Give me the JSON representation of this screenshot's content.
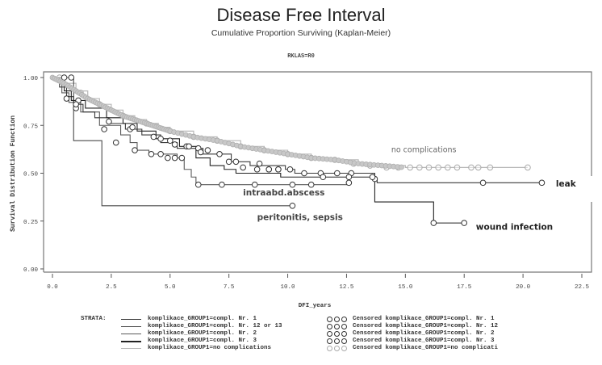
{
  "chart_data": {
    "type": "line",
    "subtype": "kaplan-meier-step",
    "title": "Disease Free Interval",
    "subtitle": "Cumulative Proportion Surviving (Kaplan-Meier)",
    "strata_filter": "RKLAS=R0",
    "xlabel": "DFI_years",
    "ylabel": "Survival Distribution Function",
    "xlim": [
      0,
      22.5
    ],
    "ylim": [
      0,
      1
    ],
    "xticks": [
      "0.0",
      "2.5",
      "5.0",
      "7.5",
      "10.0",
      "12.5",
      "15.0",
      "17.5",
      "20.0",
      "22.5"
    ],
    "xtick_values": [
      0,
      2.5,
      5,
      7.5,
      10,
      12.5,
      15,
      17.5,
      20,
      22.5
    ],
    "yticks": [
      "0.00",
      "0.25",
      "0.50",
      "0.75",
      "1.00"
    ],
    "ytick_values": [
      0,
      0.25,
      0.5,
      0.75,
      1
    ],
    "grid": false,
    "legend_position": "bottom",
    "legend_title": "STRATA:",
    "series": [
      {
        "name": "komplikace_GROUP1=compl. Nr. 1",
        "censored_name": "Censored komplikace_GROUP1=compl. Nr. 1",
        "annotation": "leak",
        "color": "#3a3a3a",
        "steps": [
          [
            0,
            1.0
          ],
          [
            0.3,
            0.95
          ],
          [
            0.6,
            0.9
          ],
          [
            0.9,
            0.86
          ],
          [
            1.3,
            0.82
          ],
          [
            1.8,
            0.79
          ],
          [
            2.4,
            0.76
          ],
          [
            3.1,
            0.73
          ],
          [
            3.8,
            0.7
          ],
          [
            4.6,
            0.66
          ],
          [
            5.3,
            0.63
          ],
          [
            6.4,
            0.6
          ],
          [
            7.6,
            0.56
          ],
          [
            8.4,
            0.54
          ],
          [
            9.9,
            0.52
          ],
          [
            10.3,
            0.5
          ],
          [
            13.7,
            0.47
          ],
          [
            13.8,
            0.45
          ],
          [
            20.8,
            0.45
          ]
        ],
        "censored": [
          [
            0.5,
            1.0
          ],
          [
            1.1,
            0.88
          ],
          [
            3.3,
            0.73
          ],
          [
            4.3,
            0.69
          ],
          [
            5.2,
            0.65
          ],
          [
            5.7,
            0.64
          ],
          [
            6.2,
            0.63
          ],
          [
            6.6,
            0.62
          ],
          [
            7.1,
            0.6
          ],
          [
            7.8,
            0.56
          ],
          [
            8.8,
            0.55
          ],
          [
            9.2,
            0.52
          ],
          [
            9.6,
            0.52
          ],
          [
            10.1,
            0.52
          ],
          [
            10.7,
            0.5
          ],
          [
            11.4,
            0.5
          ],
          [
            12.1,
            0.5
          ],
          [
            12.7,
            0.5
          ],
          [
            13.7,
            0.47
          ],
          [
            18.3,
            0.45
          ],
          [
            20.8,
            0.45
          ]
        ]
      },
      {
        "name": "komplikace_GROUP1=compl. Nr. 12 or 13",
        "censored_name": "Censored komplikace_GROUP1=compl. Nr. 12",
        "annotation": "peritonitis, sepsis",
        "color": "#4a4a4a",
        "steps": [
          [
            0,
            1.0
          ],
          [
            0.9,
            0.67
          ],
          [
            2.1,
            0.33
          ],
          [
            10.2,
            0.33
          ]
        ],
        "censored": [
          [
            0.8,
            1.0
          ],
          [
            10.2,
            0.33
          ]
        ]
      },
      {
        "name": "komplikace_GROUP1=compl. Nr. 2",
        "censored_name": "Censored komplikace_GROUP1=compl. Nr. 2",
        "annotation": "intraabd.abscess",
        "color": "#5a5a5a",
        "steps": [
          [
            0,
            1.0
          ],
          [
            0.4,
            0.92
          ],
          [
            0.7,
            0.87
          ],
          [
            1.2,
            0.82
          ],
          [
            2.0,
            0.75
          ],
          [
            2.9,
            0.7
          ],
          [
            3.3,
            0.66
          ],
          [
            3.6,
            0.62
          ],
          [
            4.1,
            0.6
          ],
          [
            5.3,
            0.58
          ],
          [
            5.6,
            0.52
          ],
          [
            5.9,
            0.48
          ],
          [
            6.1,
            0.44
          ],
          [
            12.6,
            0.44
          ]
        ],
        "censored": [
          [
            0.6,
            0.89
          ],
          [
            1.0,
            0.84
          ],
          [
            2.2,
            0.73
          ],
          [
            2.7,
            0.66
          ],
          [
            3.5,
            0.62
          ],
          [
            4.2,
            0.6
          ],
          [
            4.6,
            0.6
          ],
          [
            4.9,
            0.58
          ],
          [
            5.2,
            0.58
          ],
          [
            5.5,
            0.58
          ],
          [
            6.2,
            0.44
          ],
          [
            7.2,
            0.44
          ],
          [
            8.6,
            0.44
          ],
          [
            10.2,
            0.44
          ],
          [
            11.0,
            0.44
          ],
          [
            12.6,
            0.45
          ]
        ]
      },
      {
        "name": "komplikace_GROUP1=compl. Nr. 3",
        "censored_name": "Censored komplikace_GROUP1=compl. Nr. 3",
        "annotation": "wound infection",
        "color": "#222222",
        "steps": [
          [
            0,
            1.0
          ],
          [
            0.5,
            0.93
          ],
          [
            0.8,
            0.88
          ],
          [
            1.4,
            0.84
          ],
          [
            2.3,
            0.79
          ],
          [
            3.0,
            0.76
          ],
          [
            3.6,
            0.72
          ],
          [
            4.4,
            0.68
          ],
          [
            5.4,
            0.64
          ],
          [
            6.1,
            0.58
          ],
          [
            6.7,
            0.54
          ],
          [
            7.3,
            0.52
          ],
          [
            7.8,
            0.5
          ],
          [
            9.7,
            0.48
          ],
          [
            13.7,
            0.48
          ],
          [
            13.7,
            0.35
          ],
          [
            16.2,
            0.24
          ],
          [
            17.5,
            0.24
          ]
        ],
        "censored": [
          [
            1.0,
            0.86
          ],
          [
            2.4,
            0.77
          ],
          [
            3.4,
            0.74
          ],
          [
            4.6,
            0.68
          ],
          [
            5.0,
            0.67
          ],
          [
            5.8,
            0.64
          ],
          [
            6.3,
            0.61
          ],
          [
            7.5,
            0.56
          ],
          [
            8.1,
            0.53
          ],
          [
            8.7,
            0.52
          ],
          [
            9.2,
            0.52
          ],
          [
            9.6,
            0.52
          ],
          [
            11.5,
            0.48
          ],
          [
            12.6,
            0.48
          ],
          [
            13.6,
            0.48
          ],
          [
            16.2,
            0.24
          ],
          [
            17.5,
            0.24
          ]
        ]
      },
      {
        "name": "komplikace_GROUP1=no complications",
        "censored_name": "Censored komplikace_GROUP1=no complicati",
        "annotation": "no complications",
        "color": "#b8b8b8",
        "steps": [
          [
            0,
            1.0
          ],
          [
            0.5,
            0.97
          ],
          [
            1.0,
            0.93
          ],
          [
            1.5,
            0.89
          ],
          [
            2.0,
            0.86
          ],
          [
            2.5,
            0.83
          ],
          [
            3.0,
            0.8
          ],
          [
            3.5,
            0.78
          ],
          [
            4.0,
            0.76
          ],
          [
            4.5,
            0.74
          ],
          [
            5.0,
            0.72
          ],
          [
            6.0,
            0.69
          ],
          [
            7.0,
            0.67
          ],
          [
            8.0,
            0.64
          ],
          [
            9.0,
            0.62
          ],
          [
            10.0,
            0.6
          ],
          [
            11.0,
            0.58
          ],
          [
            12.0,
            0.57
          ],
          [
            13.0,
            0.55
          ],
          [
            14.0,
            0.54
          ],
          [
            15.0,
            0.53
          ],
          [
            20.2,
            0.53
          ]
        ],
        "censored": [
          [
            0.3,
            1.0
          ],
          [
            1.2,
            0.92
          ],
          [
            2.0,
            0.86
          ],
          [
            3.0,
            0.8
          ],
          [
            4.0,
            0.76
          ],
          [
            5.0,
            0.72
          ],
          [
            6.0,
            0.69
          ],
          [
            7.0,
            0.67
          ],
          [
            8.0,
            0.64
          ],
          [
            9.0,
            0.62
          ],
          [
            10.0,
            0.6
          ],
          [
            11.0,
            0.58
          ],
          [
            12.0,
            0.57
          ],
          [
            12.8,
            0.55
          ],
          [
            13.5,
            0.54
          ],
          [
            14.2,
            0.53
          ],
          [
            14.7,
            0.53
          ],
          [
            15.2,
            0.53
          ],
          [
            15.6,
            0.53
          ],
          [
            16.0,
            0.53
          ],
          [
            16.4,
            0.53
          ],
          [
            16.8,
            0.53
          ],
          [
            17.2,
            0.53
          ],
          [
            17.8,
            0.53
          ],
          [
            18.1,
            0.53
          ],
          [
            18.6,
            0.53
          ],
          [
            20.2,
            0.53
          ]
        ]
      }
    ]
  }
}
